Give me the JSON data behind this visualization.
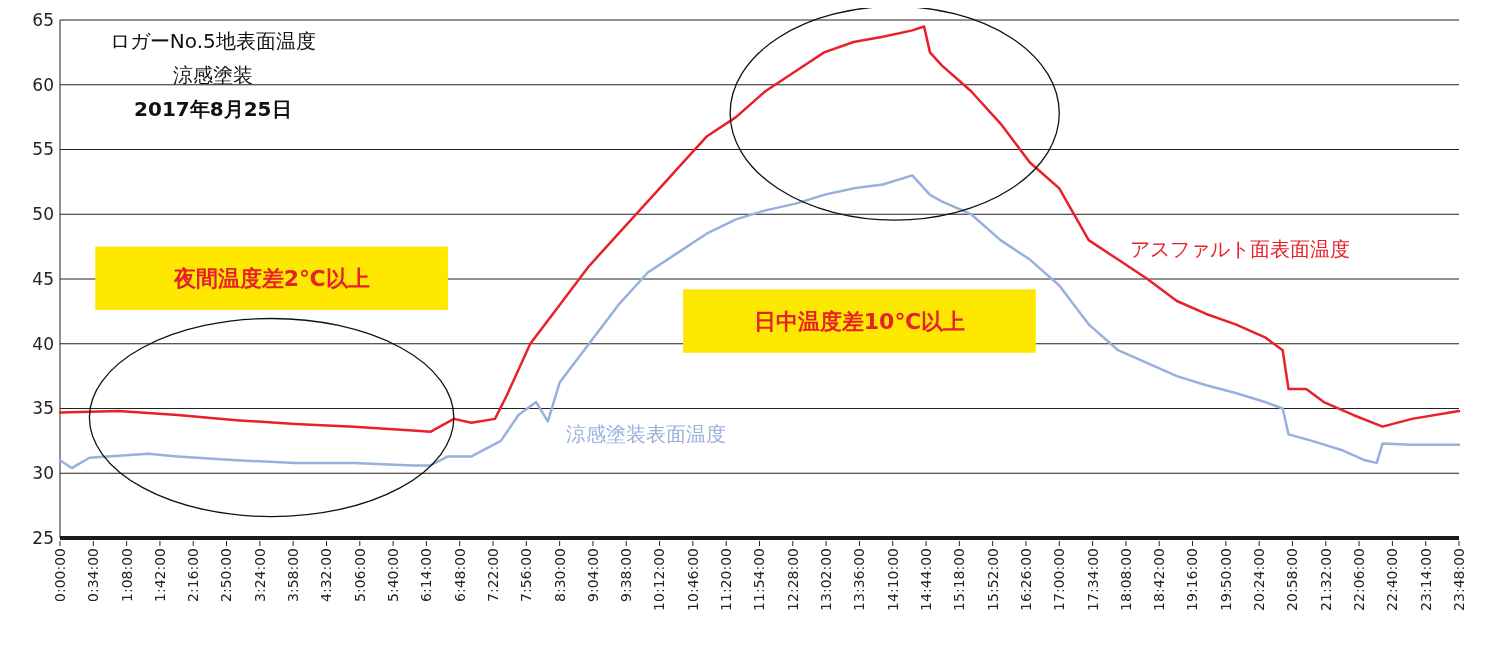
{
  "chart_data": {
    "type": "line",
    "title": "ロガーNo.5地表面温度",
    "subtitle": "涼感塗装",
    "annotations": [
      "2017年8月25日",
      "夜間温度差2℃以上",
      "日中温度差10℃以上"
    ],
    "xlim": [
      0,
      23.8
    ],
    "ylim": [
      25,
      65
    ],
    "yticks": [
      25,
      30,
      35,
      40,
      45,
      50,
      55,
      60,
      65
    ],
    "xticks": [
      {
        "value": 0,
        "label": "0:00:00"
      },
      {
        "value": 0.5667,
        "label": "0:34:00"
      },
      {
        "value": 1.1333,
        "label": "1:08:00"
      },
      {
        "value": 1.7,
        "label": "1:42:00"
      },
      {
        "value": 2.2667,
        "label": "2:16:00"
      },
      {
        "value": 2.8333,
        "label": "2:50:00"
      },
      {
        "value": 3.4,
        "label": "3:24:00"
      },
      {
        "value": 3.9667,
        "label": "3:58:00"
      },
      {
        "value": 4.5333,
        "label": "4:32:00"
      },
      {
        "value": 5.1,
        "label": "5:06:00"
      },
      {
        "value": 5.6667,
        "label": "5:40:00"
      },
      {
        "value": 6.2333,
        "label": "6:14:00"
      },
      {
        "value": 6.8,
        "label": "6:48:00"
      },
      {
        "value": 7.3667,
        "label": "7:22:00"
      },
      {
        "value": 7.9333,
        "label": "7:56:00"
      },
      {
        "value": 8.5,
        "label": "8:30:00"
      },
      {
        "value": 9.0667,
        "label": "9:04:00"
      },
      {
        "value": 9.6333,
        "label": "9:38:00"
      },
      {
        "value": 10.2,
        "label": "10:12:00"
      },
      {
        "value": 10.7667,
        "label": "10:46:00"
      },
      {
        "value": 11.3333,
        "label": "11:20:00"
      },
      {
        "value": 11.9,
        "label": "11:54:00"
      },
      {
        "value": 12.4667,
        "label": "12:28:00"
      },
      {
        "value": 13.0333,
        "label": "13:02:00"
      },
      {
        "value": 13.6,
        "label": "13:36:00"
      },
      {
        "value": 14.1667,
        "label": "14:10:00"
      },
      {
        "value": 14.7333,
        "label": "14:44:00"
      },
      {
        "value": 15.3,
        "label": "15:18:00"
      },
      {
        "value": 15.8667,
        "label": "15:52:00"
      },
      {
        "value": 16.4333,
        "label": "16:26:00"
      },
      {
        "value": 17,
        "label": "17:00:00"
      },
      {
        "value": 17.5667,
        "label": "17:34:00"
      },
      {
        "value": 18.1333,
        "label": "18:08:00"
      },
      {
        "value": 18.7,
        "label": "18:42:00"
      },
      {
        "value": 19.2667,
        "label": "19:16:00"
      },
      {
        "value": 19.8333,
        "label": "19:50:00"
      },
      {
        "value": 20.4,
        "label": "20:24:00"
      },
      {
        "value": 20.9667,
        "label": "20:58:00"
      },
      {
        "value": 21.5333,
        "label": "21:32:00"
      },
      {
        "value": 22.1,
        "label": "22:06:00"
      },
      {
        "value": 22.6667,
        "label": "22:40:00"
      },
      {
        "value": 23.2333,
        "label": "23:14:00"
      },
      {
        "value": 23.8,
        "label": "23:48:00"
      }
    ],
    "grid": "y",
    "legend": false,
    "marker": "none",
    "line_style": "solid",
    "series": [
      {
        "name": "アスファルト面表面温度",
        "color": "#e8202a",
        "x": [
          0,
          1,
          2,
          3,
          4,
          5,
          6,
          6.3,
          6.7,
          7,
          7.4,
          7.6,
          8,
          8.5,
          9,
          9.5,
          10,
          10.5,
          11,
          11.5,
          12,
          12.5,
          13,
          13.5,
          14,
          14.5,
          14.7,
          14.8,
          15,
          15.5,
          16,
          16.5,
          17,
          17.5,
          18,
          18.5,
          19,
          19.5,
          20,
          20.5,
          20.8,
          20.9,
          21.2,
          21.5,
          22,
          22.5,
          23,
          23.8
        ],
        "values": [
          34.7,
          34.8,
          34.5,
          34.1,
          33.8,
          33.6,
          33.3,
          33.2,
          34.2,
          33.9,
          34.2,
          36,
          40,
          43,
          46,
          48.5,
          51,
          53.5,
          56,
          57.5,
          59.5,
          61,
          62.5,
          63.3,
          63.7,
          64.2,
          64.5,
          62.5,
          61.5,
          59.5,
          57,
          54,
          52,
          48,
          46.5,
          45,
          43.3,
          42.3,
          41.5,
          40.5,
          39.5,
          36.5,
          36.5,
          35.5,
          34.5,
          33.6,
          34.2,
          34.8
        ]
      },
      {
        "name": "涼感塗装表面温度",
        "color": "#98b0dc",
        "x": [
          0,
          0.2,
          0.5,
          1.5,
          2,
          3,
          4,
          5,
          6,
          6.3,
          6.6,
          7,
          7.5,
          7.8,
          8.1,
          8.3,
          8.5,
          9,
          9.5,
          10,
          10.5,
          11,
          11.5,
          12,
          12.5,
          13,
          13.5,
          14,
          14.5,
          14.8,
          15,
          15.5,
          16,
          16.5,
          17,
          17.5,
          18,
          18.5,
          19,
          19.5,
          20,
          20.5,
          20.8,
          20.9,
          21.3,
          21.8,
          22.2,
          22.4,
          22.5,
          23,
          23.8
        ],
        "values": [
          31,
          30.4,
          31.2,
          31.5,
          31.3,
          31,
          30.8,
          30.8,
          30.6,
          30.6,
          31.3,
          31.3,
          32.5,
          34.5,
          35.5,
          34,
          37,
          40,
          43,
          45.5,
          47,
          48.5,
          49.6,
          50.3,
          50.8,
          51.5,
          52,
          52.3,
          53,
          51.5,
          51,
          50,
          48,
          46.5,
          44.5,
          41.5,
          39.5,
          38.5,
          37.5,
          36.8,
          36.2,
          35.5,
          35,
          33,
          32.5,
          31.8,
          31,
          30.8,
          32.3,
          32.2,
          32.2
        ]
      }
    ]
  }
}
